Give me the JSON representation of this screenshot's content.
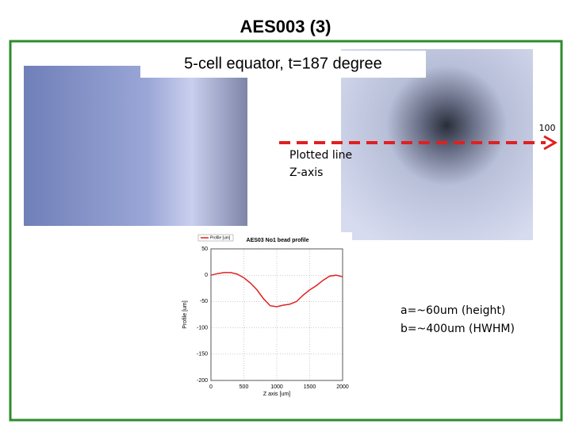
{
  "slide": {
    "title": "AES003  (3)",
    "subtitle": "5-cell  equator, t=187 degree",
    "scan_label": "100",
    "notes": [
      "Plotted line",
      "Z-axis"
    ],
    "results": [
      "a=~60um (height)",
      "b=~400um (HWHM)"
    ]
  },
  "chart_data": {
    "type": "line",
    "title": "AES03 No1 bead profile",
    "x_label": "Z axis [um]",
    "y_label": "Profile [um]",
    "x": [
      0,
      100,
      200,
      300,
      400,
      500,
      600,
      700,
      800,
      900,
      1000,
      1100,
      1200,
      1300,
      1400,
      1500,
      1600,
      1700,
      1800,
      1900,
      2000
    ],
    "series": [
      {
        "name": "Profile [um]",
        "color": "#e02020",
        "values": [
          0,
          3,
          5,
          5,
          2,
          -5,
          -15,
          -28,
          -45,
          -58,
          -60,
          -57,
          -55,
          -50,
          -38,
          -28,
          -20,
          -10,
          -2,
          0,
          -3
        ]
      }
    ],
    "xlim": [
      0,
      2000
    ],
    "xticks": [
      0,
      500,
      1000,
      1500,
      2000
    ],
    "ylim": [
      -200,
      50
    ],
    "yticks": [
      50,
      0,
      -50,
      -100,
      -150,
      -200
    ],
    "grid": true
  }
}
